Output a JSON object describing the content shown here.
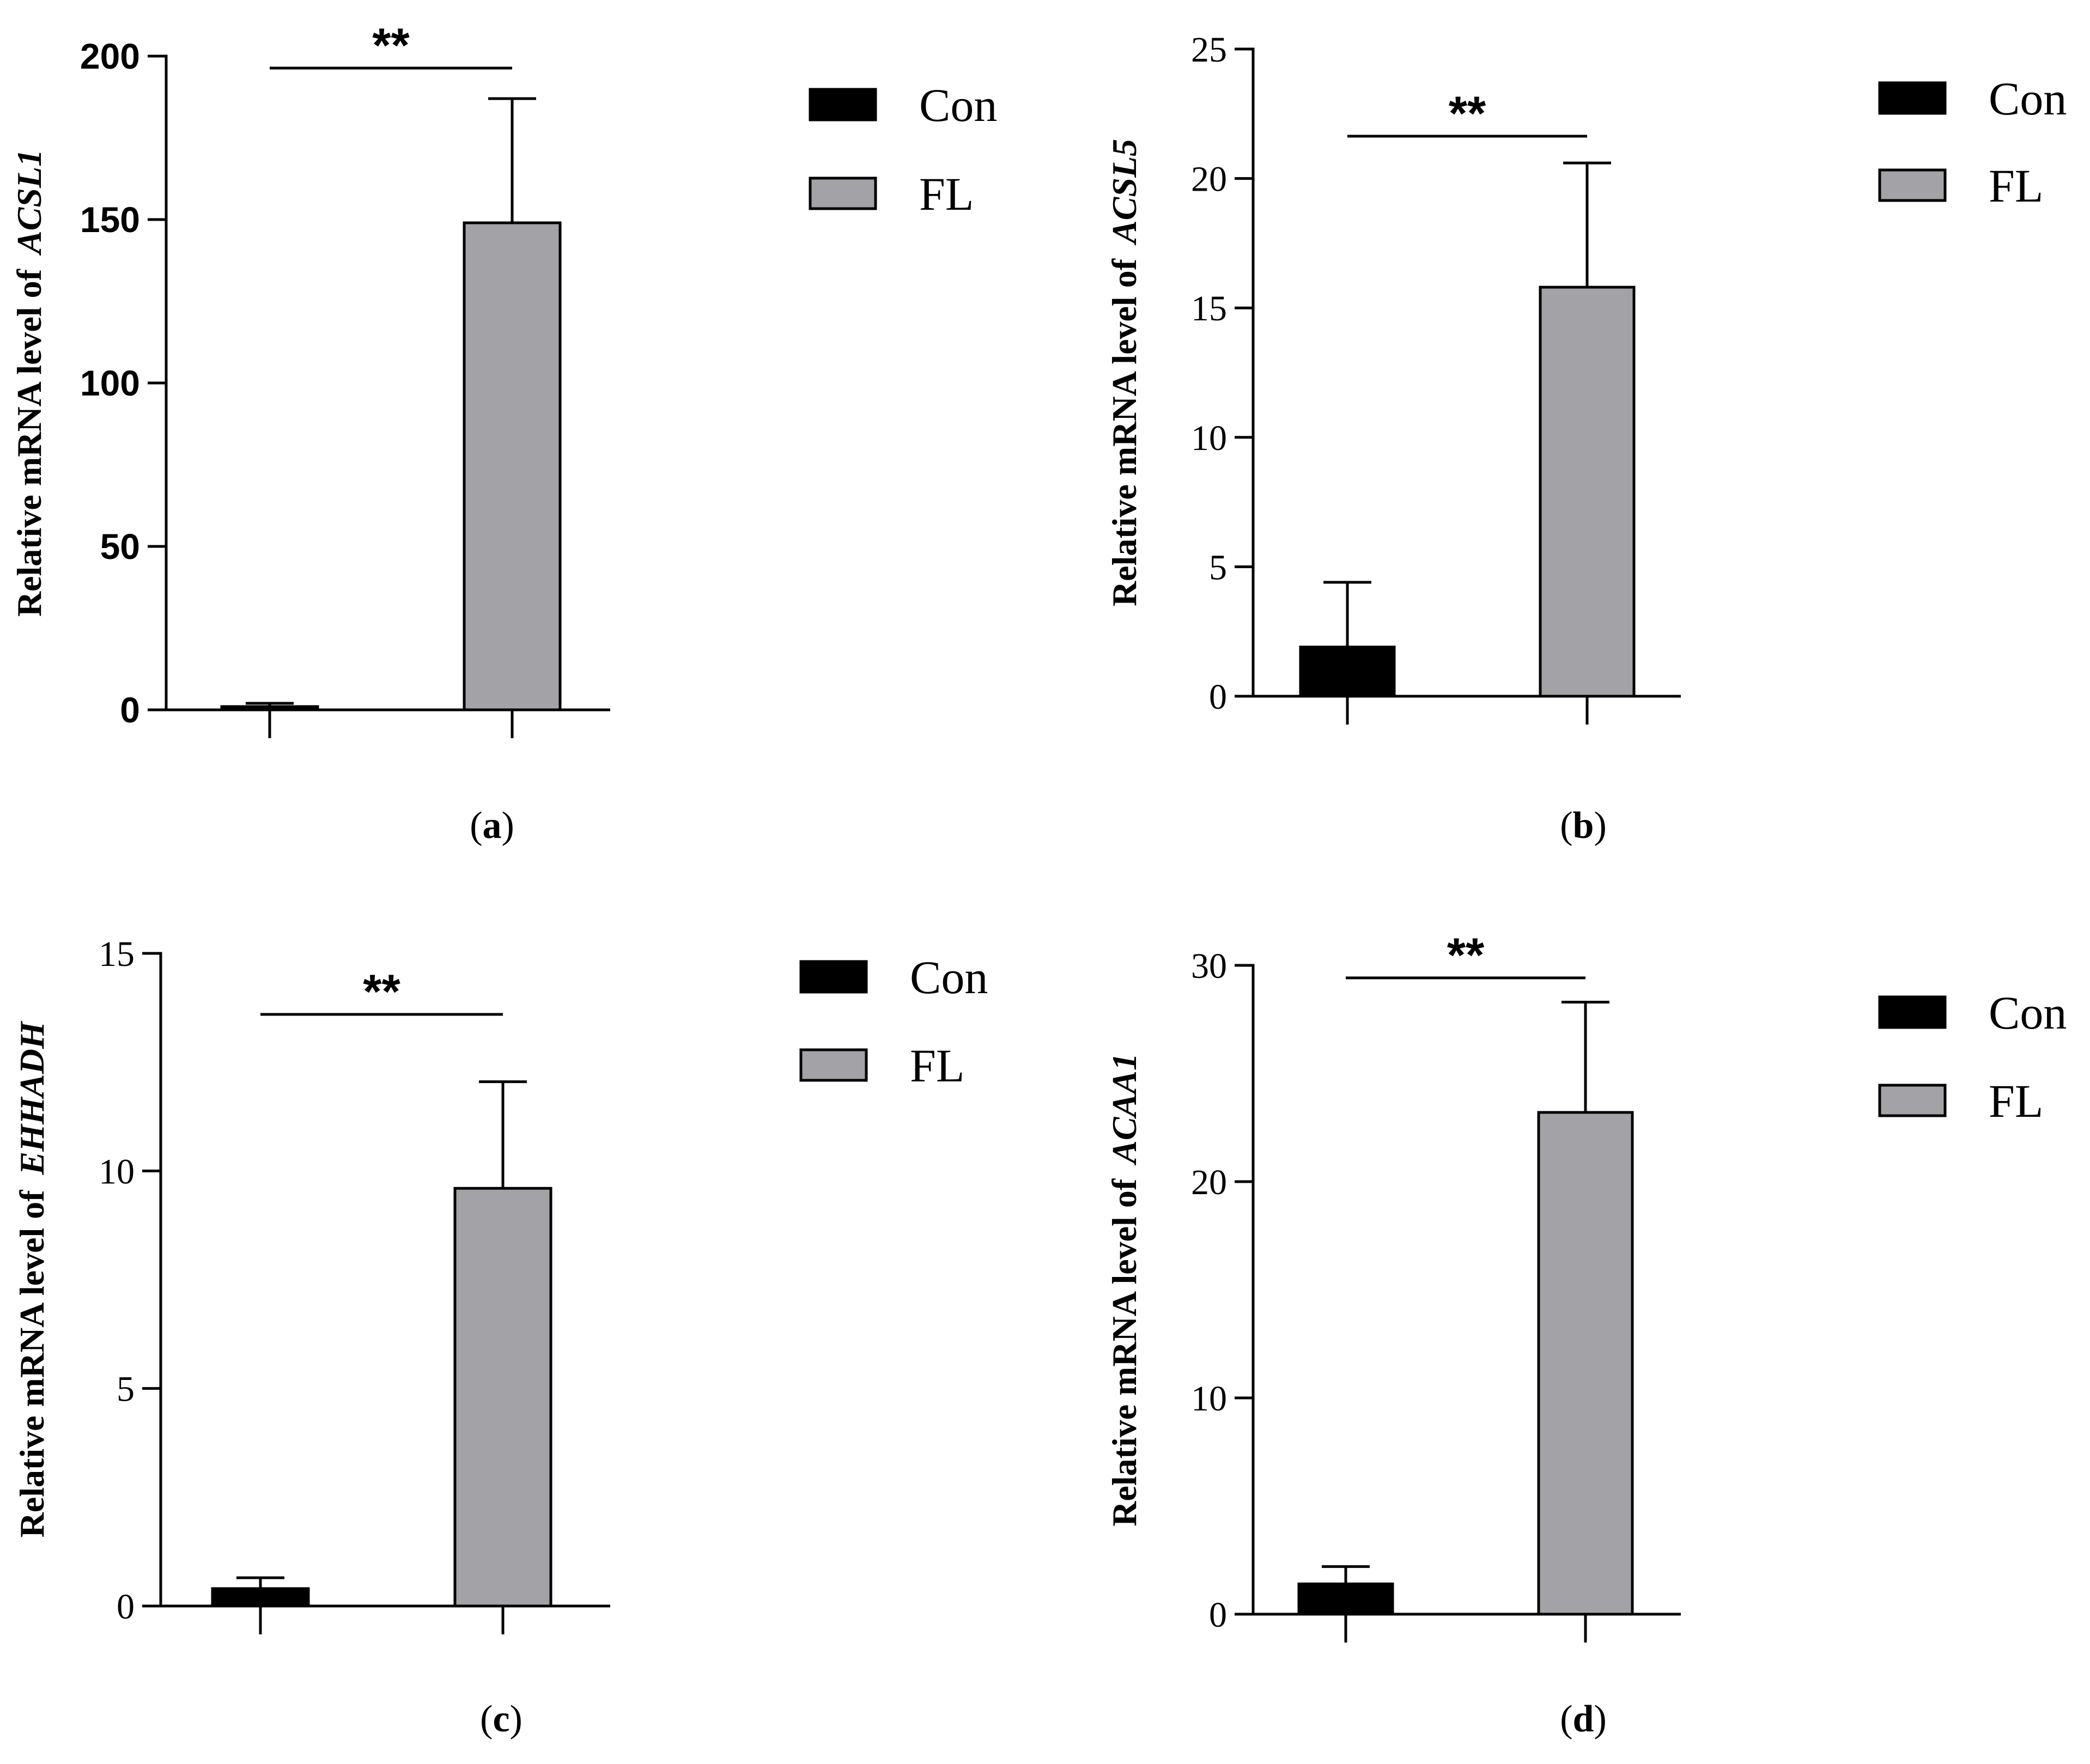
{
  "chart_data": [
    {
      "type": "bar",
      "panel_label": "a",
      "ylabel_prefix": "Relative mRNA level of",
      "gene": "ACSL1",
      "categories": [
        "Con",
        "FL"
      ],
      "values": [
        1,
        149
      ],
      "errors": [
        1,
        38
      ],
      "ylim": [
        0,
        200
      ],
      "yticks": [
        0,
        50,
        100,
        150,
        200
      ],
      "tick_style": "sans-bold",
      "significance": "**",
      "colors": [
        "#000000",
        "#a3a2a7"
      ]
    },
    {
      "type": "bar",
      "panel_label": "b",
      "ylabel_prefix": "Relative mRNA level of",
      "gene": "ACSL5",
      "categories": [
        "Con",
        "FL"
      ],
      "values": [
        1.9,
        15.8
      ],
      "errors": [
        2.5,
        4.8
      ],
      "ylim": [
        0,
        25
      ],
      "yticks": [
        0,
        5,
        10,
        15,
        20,
        25
      ],
      "tick_style": "serif",
      "significance": "**",
      "colors": [
        "#000000",
        "#a3a2a7"
      ]
    },
    {
      "type": "bar",
      "panel_label": "c",
      "ylabel_prefix": "Relative mRNA level of",
      "gene": "EHHADH",
      "categories": [
        "Con",
        "FL"
      ],
      "values": [
        0.4,
        9.6
      ],
      "errors": [
        0.25,
        2.45
      ],
      "ylim": [
        0,
        15
      ],
      "yticks": [
        0,
        5,
        10,
        15
      ],
      "tick_style": "serif",
      "significance": "**",
      "colors": [
        "#000000",
        "#a3a2a7"
      ]
    },
    {
      "type": "bar",
      "panel_label": "d",
      "ylabel_prefix": "Relative mRNA level of",
      "gene": "ACAA1",
      "categories": [
        "Con",
        "FL"
      ],
      "values": [
        1.4,
        23.2
      ],
      "errors": [
        0.8,
        5.1
      ],
      "ylim": [
        0,
        30
      ],
      "yticks": [
        0,
        10,
        20,
        30
      ],
      "tick_style": "serif",
      "significance": "**",
      "colors": [
        "#000000",
        "#a3a2a7"
      ]
    }
  ],
  "legend": [
    "Con",
    "FL"
  ]
}
